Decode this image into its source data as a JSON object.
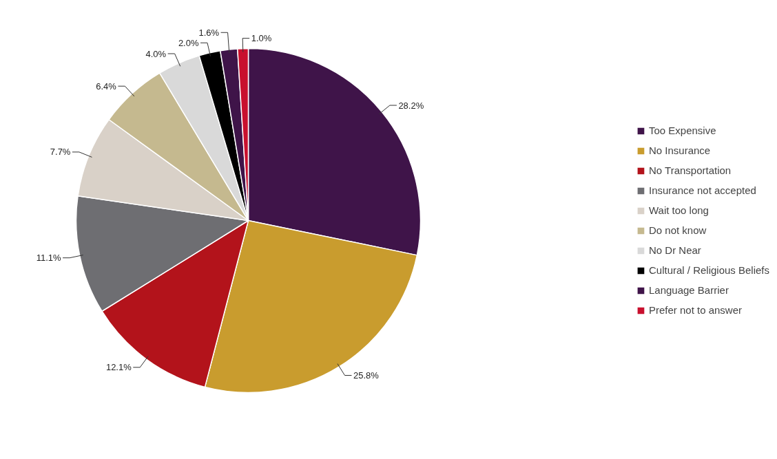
{
  "chart_data": {
    "type": "pie",
    "categories": [
      "Too Expensive",
      "No Insurance",
      "No Transportation",
      "Insurance not accepted",
      "Wait too long",
      "Do not know",
      "No Dr Near",
      "Cultural / Religious Beliefs",
      "Language Barrier",
      "Prefer not to answer"
    ],
    "values": [
      28.2,
      25.8,
      12.1,
      11.1,
      7.7,
      6.4,
      4.0,
      2.0,
      1.6,
      1.0
    ],
    "value_labels": [
      "28.2%",
      "25.8%",
      "12.1%",
      "11.1%",
      "7.7%",
      "6.4%",
      "4.0%",
      "2.0%",
      "1.6%",
      "1.0%"
    ],
    "colors": [
      "#3f1449",
      "#c99c2e",
      "#b3131b",
      "#6e6e72",
      "#d9d1c8",
      "#c5b98f",
      "#d9d9d9",
      "#000000",
      "#3f1449",
      "#c8102e"
    ],
    "legend": "right"
  }
}
